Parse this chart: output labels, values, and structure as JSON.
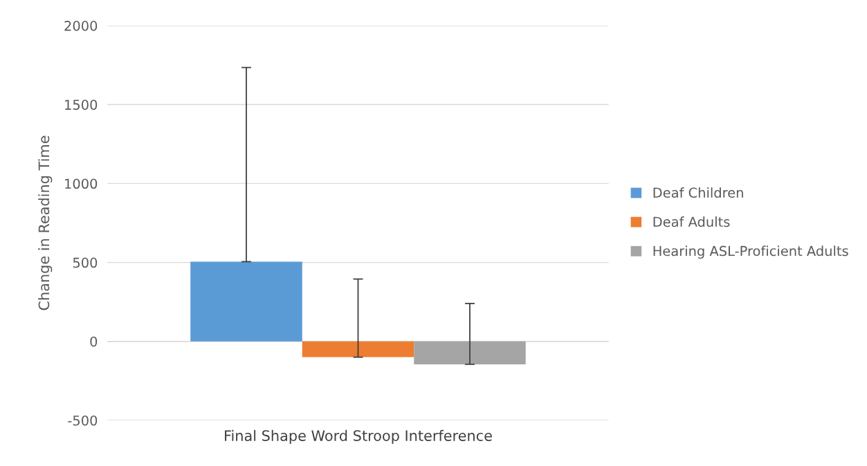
{
  "chart_data": {
    "type": "bar",
    "ylabel": "Change in Reading Time",
    "categories": [
      "Final Shape Word Stroop Interference"
    ],
    "series": [
      {
        "name": "Deaf Children",
        "color": "#5b9bd5",
        "values": [
          505
        ],
        "errors": [
          [
            505,
            1735
          ]
        ]
      },
      {
        "name": "Deaf Adults",
        "color": "#ed7d31",
        "values": [
          -100
        ],
        "errors": [
          [
            -100,
            395
          ]
        ]
      },
      {
        "name": "Hearing ASL-Proficient Adults",
        "color": "#a5a5a5",
        "values": [
          -145
        ],
        "errors": [
          [
            -145,
            240
          ]
        ]
      }
    ],
    "ylim": [
      -500,
      2000
    ],
    "yticks": [
      -500,
      0,
      500,
      1000,
      1500,
      2000
    ],
    "grid": "y",
    "legend": "right"
  }
}
